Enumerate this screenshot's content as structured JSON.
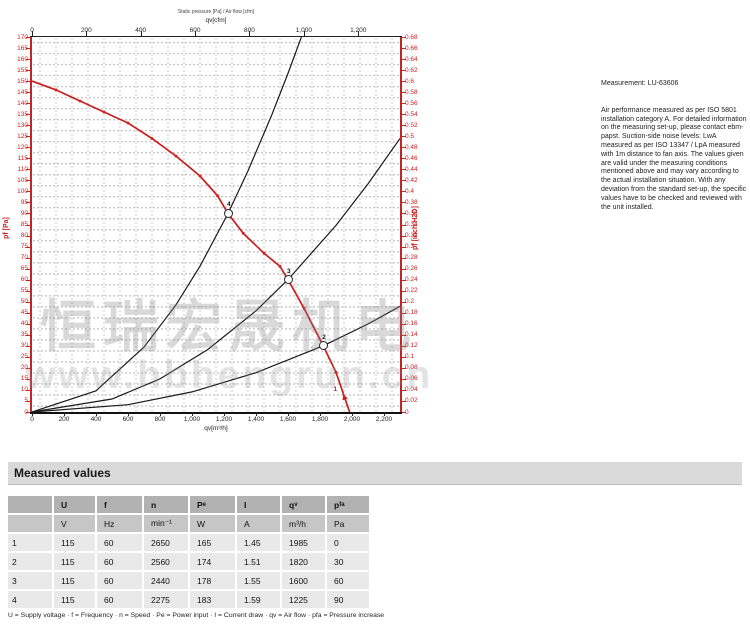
{
  "chart_data": {
    "type": "line",
    "title_small": "Static pressure [Pa] / Air flow [cfm]",
    "top_axis": {
      "label": "qv[cfm]",
      "cfm_to_m3h": 1.699,
      "ticks": [
        0,
        200,
        400,
        600,
        800,
        1000,
        1200
      ],
      "tick_labels": [
        "0",
        "200",
        "400",
        "600",
        "800",
        "1,000",
        "1,200"
      ]
    },
    "bottom_axis": {
      "label": "qv[m³/h]",
      "min": 0,
      "max": 2300,
      "ticks": [
        0,
        200,
        400,
        600,
        800,
        1000,
        1200,
        1400,
        1600,
        1800,
        2000,
        2200
      ],
      "tick_labels": [
        "0",
        "200",
        "400",
        "600",
        "800",
        "1,000",
        "1,200",
        "1,400",
        "1,600",
        "1,800",
        "2,000",
        "2,200"
      ]
    },
    "left_axis": {
      "label": "pf [Pa]",
      "min": 0,
      "max": 170,
      "step": 5,
      "tick_labels": [
        "170",
        "165",
        "160",
        "155",
        "150",
        "145",
        "140",
        "135",
        "130",
        "125",
        "120",
        "115",
        "110",
        "105",
        "100",
        "95",
        "90",
        "85",
        "80",
        "75",
        "70",
        "65",
        "60",
        "55",
        "50",
        "45",
        "40",
        "35",
        "30",
        "25",
        "20",
        "15",
        "10",
        "5",
        "0"
      ]
    },
    "right_axis": {
      "label": "pf [inch H2O]",
      "min": 0,
      "max": 0.68,
      "step": 0.02,
      "tick_labels": [
        "0.68",
        "0.66",
        "0.64",
        "0.62",
        "0.6",
        "0.58",
        "0.56",
        "0.54",
        "0.52",
        "0.5",
        "0.48",
        "0.46",
        "0.44",
        "0.42",
        "0.4",
        "0.38",
        "0.36",
        "0.34",
        "0.32",
        "0.3",
        "0.28",
        "0.26",
        "0.24",
        "0.22",
        "0.2",
        "0.18",
        "0.16",
        "0.14",
        "0.12",
        "0.1",
        "0.08",
        "0.06",
        "0.04",
        "0.02",
        "0"
      ]
    },
    "grid": "dotted",
    "legend": "none",
    "colors": {
      "fan_curve": "#c91f1f",
      "system_curve": "#1a1a1a",
      "axis_red": "#c22525",
      "grid": "#9c9c9c"
    },
    "series": [
      {
        "name": "fan-curve-115V-60Hz",
        "color": "#c91f1f",
        "points": [
          [
            0,
            150
          ],
          [
            150,
            146
          ],
          [
            300,
            141
          ],
          [
            450,
            136
          ],
          [
            600,
            131
          ],
          [
            750,
            124
          ],
          [
            900,
            116
          ],
          [
            1050,
            107
          ],
          [
            1160,
            98
          ],
          [
            1225,
            90
          ],
          [
            1320,
            81
          ],
          [
            1450,
            72
          ],
          [
            1550,
            66
          ],
          [
            1600,
            60
          ],
          [
            1700,
            47
          ],
          [
            1820,
            30
          ],
          [
            1900,
            18
          ],
          [
            1985,
            0
          ]
        ]
      },
      {
        "name": "system-curve-90Pa",
        "color": "#1a1a1a",
        "points": [
          [
            0,
            0
          ],
          [
            400,
            9.6
          ],
          [
            700,
            29.4
          ],
          [
            900,
            48.6
          ],
          [
            1050,
            66.1
          ],
          [
            1225,
            90
          ],
          [
            1350,
            109.3
          ],
          [
            1500,
            134.9
          ],
          [
            1600,
            153.5
          ],
          [
            1684,
            170
          ]
        ]
      },
      {
        "name": "system-curve-60Pa",
        "color": "#1a1a1a",
        "points": [
          [
            0,
            0
          ],
          [
            500,
            5.9
          ],
          [
            800,
            15
          ],
          [
            1100,
            28.4
          ],
          [
            1400,
            45.9
          ],
          [
            1600,
            60
          ],
          [
            1900,
            84.6
          ],
          [
            2100,
            103.4
          ],
          [
            2300,
            124
          ]
        ]
      },
      {
        "name": "system-curve-30Pa",
        "color": "#1a1a1a",
        "points": [
          [
            0,
            0
          ],
          [
            600,
            3.3
          ],
          [
            1000,
            9.1
          ],
          [
            1400,
            17.8
          ],
          [
            1820,
            30
          ],
          [
            2100,
            39.9
          ],
          [
            2300,
            47.9
          ]
        ]
      }
    ],
    "operating_points": [
      {
        "label": "1",
        "qv": 1985,
        "pfa": 0
      },
      {
        "label": "2",
        "qv": 1820,
        "pfa": 30
      },
      {
        "label": "3",
        "qv": 1600,
        "pfa": 60
      },
      {
        "label": "4",
        "qv": 1225,
        "pfa": 90
      }
    ]
  },
  "watermark": {
    "text": "恒瑞宏晟机电",
    "url": "www.hbhengrun.cn"
  },
  "info_panel": {
    "measurement": "Measurement: LU-63606",
    "body": "Air performance measured as per ISO 5801 installation category A. For detailed information on the measuring set-up, please contact ebm-papst. Suction-side noise levels: LwA measured as per ISO 13347 / LpA measured with 1m distance to fan axis. The values given are valid under the measuring conditions mentioned above and may vary according to the actual installation situation. With any deviation from the standard set-up, the specific values have to be checked and reviewed with the unit installed."
  },
  "table": {
    "section_title": "Measured values",
    "headers": [
      {
        "t": "",
        "s": ""
      },
      {
        "t": "U",
        "s": ""
      },
      {
        "t": "f",
        "s": ""
      },
      {
        "t": "n",
        "s": ""
      },
      {
        "t": "P",
        "s": "e"
      },
      {
        "t": "I",
        "s": ""
      },
      {
        "t": "q",
        "s": "v"
      },
      {
        "t": "p",
        "s": "fa"
      }
    ],
    "units": [
      "",
      "V",
      "Hz",
      "min⁻¹",
      "W",
      "A",
      "m³/h",
      "Pa"
    ],
    "rows": [
      [
        "1",
        "115",
        "60",
        "2650",
        "165",
        "1.45",
        "1985",
        "0"
      ],
      [
        "2",
        "115",
        "60",
        "2560",
        "174",
        "1.51",
        "1820",
        "30"
      ],
      [
        "3",
        "115",
        "60",
        "2440",
        "178",
        "1.55",
        "1600",
        "60"
      ],
      [
        "4",
        "115",
        "60",
        "2275",
        "183",
        "1.59",
        "1225",
        "90"
      ]
    ],
    "footnote": "U = Supply voltage · f = Frequency · n = Speed · Pe = Power input · I = Current draw · qv = Air flow · pfa = Pressure increase"
  }
}
